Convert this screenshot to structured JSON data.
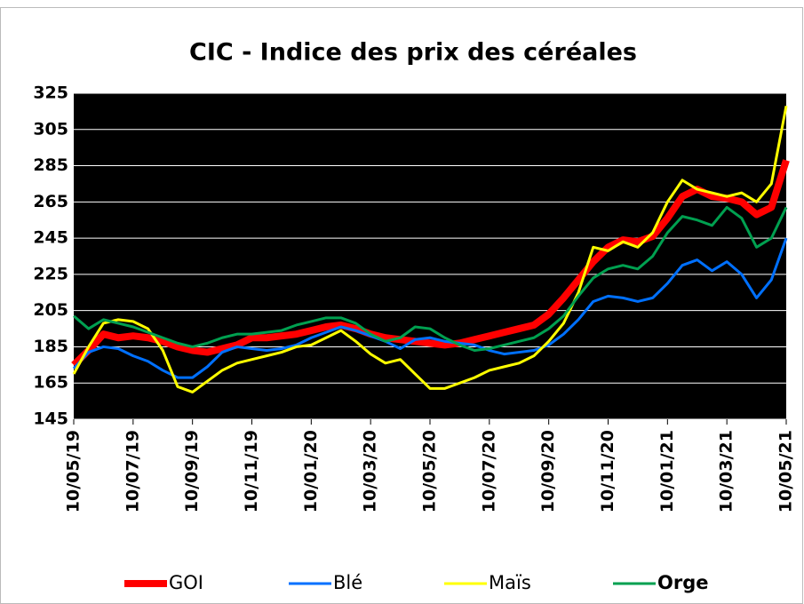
{
  "chart_data": {
    "type": "line",
    "title": "CIC - Indice des prix des céréales",
    "categories": [
      "10/05/19",
      null,
      null,
      null,
      "10/07/19",
      null,
      null,
      null,
      "10/09/19",
      null,
      null,
      null,
      "10/11/19",
      null,
      null,
      null,
      "10/01/20",
      null,
      null,
      null,
      "10/03/20",
      null,
      null,
      null,
      "10/05/20",
      null,
      null,
      null,
      "10/07/20",
      null,
      null,
      null,
      "10/09/20",
      null,
      null,
      null,
      "10/11/20",
      null,
      null,
      null,
      "10/01/21",
      null,
      null,
      null,
      "10/03/21",
      null,
      null,
      null,
      "10/05/21"
    ],
    "series": [
      {
        "name": "GOI",
        "color": "#ff0000",
        "width": 8,
        "values": [
          175,
          183,
          192,
          190,
          191,
          190,
          188,
          185,
          183,
          182,
          184,
          186,
          190,
          190,
          191,
          192,
          194,
          196,
          197,
          195,
          192,
          190,
          189,
          188,
          187,
          186,
          187,
          189,
          191,
          193,
          195,
          197,
          203,
          212,
          222,
          232,
          240,
          244,
          243,
          246,
          256,
          268,
          272,
          268,
          267,
          265,
          258,
          262,
          288
        ]
      },
      {
        "name": "Blé",
        "color": "#0070ff",
        "width": 3,
        "values": [
          173,
          182,
          185,
          184,
          180,
          177,
          172,
          168,
          168,
          174,
          182,
          185,
          184,
          183,
          184,
          186,
          190,
          193,
          196,
          194,
          191,
          188,
          184,
          189,
          190,
          188,
          187,
          186,
          183,
          181,
          182,
          183,
          186,
          192,
          200,
          210,
          213,
          212,
          210,
          212,
          220,
          230,
          233,
          227,
          232,
          225,
          212,
          222,
          245
        ]
      },
      {
        "name": "Maïs",
        "color": "#ffff00",
        "width": 3,
        "values": [
          170,
          185,
          198,
          200,
          199,
          195,
          183,
          163,
          160,
          166,
          172,
          176,
          178,
          180,
          182,
          185,
          186,
          190,
          194,
          188,
          181,
          176,
          178,
          170,
          162,
          162,
          165,
          168,
          172,
          174,
          176,
          180,
          188,
          198,
          215,
          240,
          238,
          243,
          240,
          248,
          265,
          277,
          272,
          270,
          268,
          270,
          265,
          275,
          318
        ]
      },
      {
        "name": "Orge",
        "color": "#00a050",
        "width": 3,
        "bold": true,
        "values": [
          202,
          195,
          200,
          198,
          196,
          193,
          190,
          187,
          185,
          187,
          190,
          192,
          192,
          193,
          194,
          197,
          199,
          201,
          201,
          198,
          192,
          188,
          190,
          196,
          195,
          190,
          186,
          183,
          184,
          186,
          188,
          190,
          195,
          202,
          213,
          223,
          228,
          230,
          228,
          235,
          248,
          257,
          255,
          252,
          262,
          256,
          240,
          245,
          262
        ]
      }
    ],
    "ylim": [
      145,
      325
    ],
    "yticks": [
      145,
      165,
      185,
      205,
      225,
      245,
      265,
      285,
      305,
      325
    ],
    "grid": true,
    "legend": "bottom"
  }
}
